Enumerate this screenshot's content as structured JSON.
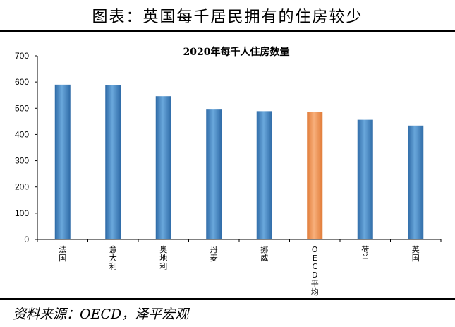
{
  "header": {
    "title": "图表：英国每千居民拥有的住房较少"
  },
  "source": "资料来源：OECD，泽平宏观",
  "chart_data": {
    "type": "bar",
    "title": "2020年每千人住房数量",
    "categories": [
      "法国",
      "意大利",
      "奥地利",
      "丹麦",
      "挪威",
      "OECD平均",
      "荷兰",
      "英国"
    ],
    "series": [
      {
        "values": [
          590,
          587,
          546,
          495,
          489,
          486,
          456,
          434
        ]
      }
    ],
    "ylim": [
      0,
      700
    ],
    "yticks": [
      0,
      100,
      200,
      300,
      400,
      500,
      600,
      700
    ],
    "highlight_category": "OECD平均",
    "colors": {
      "bar": "#4a8cc7",
      "bar_dark": "#2e6aa6",
      "highlight": "#f59a5b",
      "highlight_dark": "#e07a36"
    },
    "grid": false,
    "legend": "none"
  }
}
